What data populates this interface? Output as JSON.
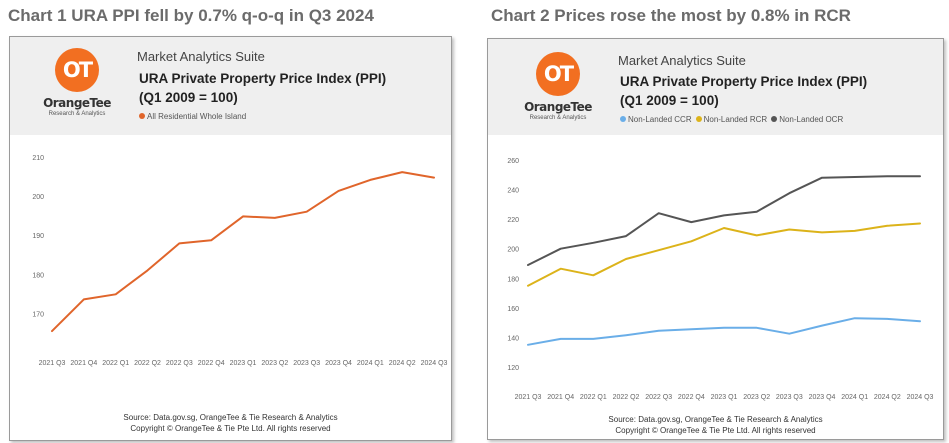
{
  "headings": {
    "chart1": "Chart 1 URA PPI fell by 0.7% q-o-q in Q3 2024",
    "chart2": "Chart 2 Prices rose the most by 0.8% in RCR"
  },
  "brand": {
    "logo_mark": "OT",
    "logo_name": "OrangeTee",
    "logo_sub": "Research & Analytics",
    "suite": "Market Analytics Suite",
    "color": "#f26f21"
  },
  "cards": [
    {
      "title_line1": "URA Private Property Price Index (PPI)",
      "title_line2": "(Q1 2009 = 100)",
      "source_line1": "Source: Data.gov.sg, OrangeTee & Tie Research & Analytics",
      "source_line2": "Copyright © OrangeTee & Tie Pte Ltd. All rights reserved"
    },
    {
      "title_line1": "URA Private Property Price Index (PPI)",
      "title_line2": "(Q1 2009 = 100)",
      "source_line1": "Source: Data.gov.sg, OrangeTee & Tie Research & Analytics",
      "source_line2": "Copyright © OrangeTee & Tie Pte Ltd. All rights reserved"
    }
  ],
  "chart_data": [
    {
      "type": "line",
      "title": "URA Private Property Price Index (PPI)",
      "subtitle": "(Q1 2009 = 100)",
      "x": [
        "2021 Q3",
        "2021 Q4",
        "2022 Q1",
        "2022 Q2",
        "2022 Q3",
        "2022 Q4",
        "2023 Q1",
        "2023 Q2",
        "2023 Q3",
        "2023 Q4",
        "2024 Q1",
        "2024 Q2",
        "2024 Q3"
      ],
      "yticks": [
        170,
        180,
        190,
        200,
        210
      ],
      "ylim": [
        164,
        212
      ],
      "grid": false,
      "legend": "top-left",
      "series": [
        {
          "name": "All Residential Whole Island",
          "color": "#e0652b",
          "values": [
            165.5,
            173.6,
            174.9,
            181.0,
            187.9,
            188.7,
            194.8,
            194.4,
            196.0,
            201.3,
            204.1,
            206.1,
            204.7
          ]
        }
      ]
    },
    {
      "type": "line",
      "title": "URA Private Property Price Index (PPI)",
      "subtitle": "(Q1 2009 = 100)",
      "x": [
        "2021 Q3",
        "2021 Q4",
        "2022 Q1",
        "2022 Q2",
        "2022 Q3",
        "2022 Q4",
        "2023 Q1",
        "2023 Q2",
        "2023 Q3",
        "2023 Q4",
        "2024 Q1",
        "2024 Q2",
        "2024 Q3"
      ],
      "yticks": [
        120,
        140,
        160,
        180,
        200,
        220,
        240,
        260
      ],
      "ylim": [
        120,
        262
      ],
      "grid": false,
      "legend": "top-left",
      "series": [
        {
          "name": "Non-Landed CCR",
          "color": "#6aaee8",
          "values": [
            135,
            139,
            139,
            141.5,
            144.5,
            145.5,
            146.5,
            146.5,
            142.5,
            148,
            153,
            152.5,
            151
          ]
        },
        {
          "name": "Non-Landed RCR",
          "color": "#dcb31a",
          "values": [
            175,
            186.5,
            182,
            193,
            199,
            205,
            214,
            209,
            213,
            211,
            212,
            215.5,
            217
          ]
        },
        {
          "name": "Non-Landed OCR",
          "color": "#555555",
          "values": [
            189,
            200,
            204,
            208.5,
            224,
            218,
            222.5,
            225,
            237.5,
            248,
            248.5,
            249,
            249
          ]
        }
      ]
    }
  ]
}
